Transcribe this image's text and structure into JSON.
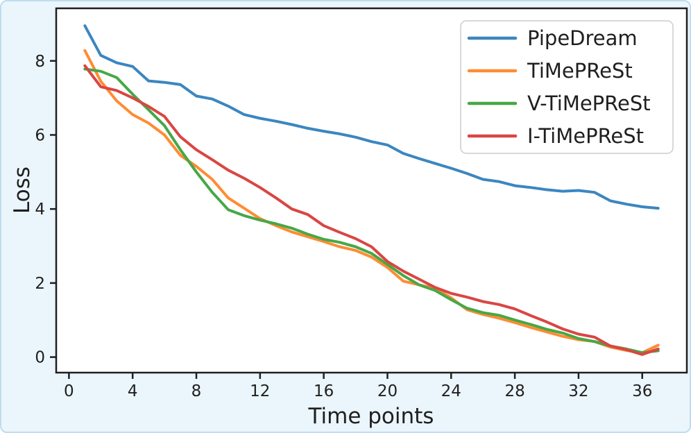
{
  "figure": {
    "background": "#ebf5fc",
    "border_color": "#bedcee",
    "plot_background": "#ffffff",
    "spine_color": "#1f1f1f",
    "text_color": "#1f1f1f",
    "legend_border_color": "#cccccc",
    "legend_background": "#ffffff"
  },
  "chart_data": {
    "type": "line",
    "title": "",
    "xlabel": "Time points",
    "ylabel": "Loss",
    "grid": false,
    "legend_position": "upper right",
    "xlim": [
      -0.8,
      38.8
    ],
    "ylim": [
      -0.42,
      9.42
    ],
    "x_ticks": [
      0,
      4,
      8,
      12,
      16,
      20,
      24,
      28,
      32,
      36
    ],
    "y_ticks": [
      0,
      2,
      4,
      6,
      8
    ],
    "x": [
      1,
      2,
      3,
      4,
      5,
      6,
      7,
      8,
      9,
      10,
      11,
      12,
      13,
      14,
      15,
      16,
      17,
      18,
      19,
      20,
      21,
      22,
      23,
      24,
      25,
      26,
      27,
      28,
      29,
      30,
      31,
      32,
      33,
      34,
      35,
      36,
      37
    ],
    "series": [
      {
        "name": "PipeDream",
        "color": "#3b86c0",
        "values": [
          8.95,
          8.15,
          7.95,
          7.85,
          7.46,
          7.42,
          7.36,
          7.05,
          6.97,
          6.78,
          6.55,
          6.45,
          6.37,
          6.28,
          6.18,
          6.1,
          6.03,
          5.94,
          5.82,
          5.73,
          5.5,
          5.36,
          5.23,
          5.1,
          4.96,
          4.8,
          4.74,
          4.63,
          4.58,
          4.52,
          4.48,
          4.5,
          4.45,
          4.22,
          4.13,
          4.06,
          4.02
        ]
      },
      {
        "name": "TiMePReSt",
        "color": "#ff8c33",
        "values": [
          8.28,
          7.45,
          6.92,
          6.55,
          6.32,
          6.0,
          5.45,
          5.15,
          4.8,
          4.3,
          4.02,
          3.74,
          3.55,
          3.38,
          3.25,
          3.12,
          2.98,
          2.88,
          2.7,
          2.42,
          2.05,
          1.95,
          1.86,
          1.6,
          1.28,
          1.15,
          1.05,
          0.93,
          0.8,
          0.68,
          0.56,
          0.47,
          0.42,
          0.27,
          0.18,
          0.12,
          0.32
        ]
      },
      {
        "name": "V-TiMePReSt",
        "color": "#46a846",
        "values": [
          7.78,
          7.72,
          7.55,
          7.1,
          6.68,
          6.25,
          5.6,
          5.0,
          4.45,
          3.98,
          3.82,
          3.7,
          3.6,
          3.48,
          3.32,
          3.18,
          3.1,
          2.98,
          2.8,
          2.5,
          2.2,
          1.95,
          1.8,
          1.55,
          1.32,
          1.2,
          1.13,
          1.0,
          0.88,
          0.75,
          0.65,
          0.5,
          0.42,
          0.3,
          0.22,
          0.12,
          0.17
        ]
      },
      {
        "name": "I-TiMePReSt",
        "color": "#d94643",
        "values": [
          7.87,
          7.3,
          7.2,
          7.0,
          6.77,
          6.5,
          5.95,
          5.6,
          5.33,
          5.05,
          4.83,
          4.58,
          4.3,
          4.0,
          3.85,
          3.55,
          3.37,
          3.2,
          2.98,
          2.58,
          2.32,
          2.1,
          1.88,
          1.72,
          1.62,
          1.5,
          1.42,
          1.3,
          1.12,
          0.95,
          0.76,
          0.62,
          0.54,
          0.3,
          0.2,
          0.07,
          0.22
        ]
      }
    ]
  }
}
